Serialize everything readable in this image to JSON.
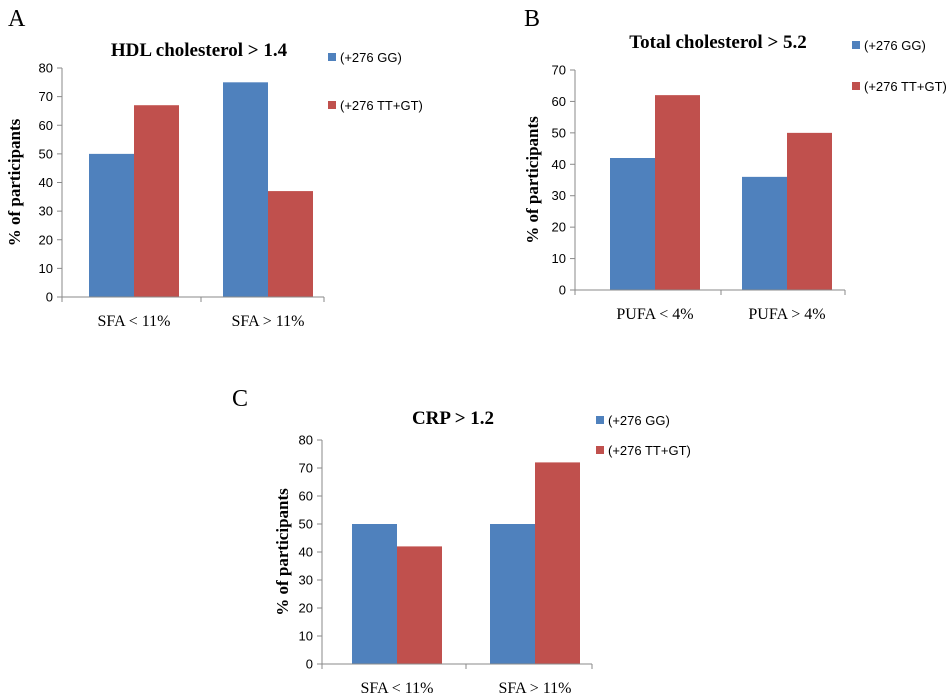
{
  "series_colors": [
    "#4f81bd",
    "#c0504d"
  ],
  "chart_data": [
    {
      "panel": "A",
      "type": "bar",
      "title": "HDL cholesterol > 1.4",
      "xlabel": "",
      "ylabel": "% of participants",
      "categories": [
        "SFA < 11%",
        "SFA > 11%"
      ],
      "series": [
        {
          "name": "(+276 GG)",
          "values": [
            50,
            75
          ]
        },
        {
          "name": "(+276 TT+GT)",
          "values": [
            67,
            37
          ]
        }
      ],
      "ylim": [
        0,
        80
      ],
      "yticks": [
        0,
        10,
        20,
        30,
        40,
        50,
        60,
        70,
        80
      ],
      "grid": false,
      "legend": "right"
    },
    {
      "panel": "B",
      "type": "bar",
      "title": "Total cholesterol > 5.2",
      "xlabel": "",
      "ylabel": "% of participants",
      "categories": [
        "PUFA < 4%",
        "PUFA > 4%"
      ],
      "series": [
        {
          "name": "(+276 GG)",
          "values": [
            42,
            36
          ]
        },
        {
          "name": "(+276 TT+GT)",
          "values": [
            62,
            50
          ]
        }
      ],
      "ylim": [
        0,
        70
      ],
      "yticks": [
        0,
        10,
        20,
        30,
        40,
        50,
        60,
        70
      ],
      "grid": false,
      "legend": "right"
    },
    {
      "panel": "C",
      "type": "bar",
      "title": "CRP > 1.2",
      "xlabel": "",
      "ylabel": "% of participants",
      "categories": [
        "SFA < 11%",
        "SFA > 11%"
      ],
      "series": [
        {
          "name": "(+276 GG)",
          "values": [
            50,
            50
          ]
        },
        {
          "name": "(+276 TT+GT)",
          "values": [
            42,
            72
          ]
        }
      ],
      "ylim": [
        0,
        80
      ],
      "yticks": [
        0,
        10,
        20,
        30,
        40,
        50,
        60,
        70,
        80
      ],
      "grid": false,
      "legend": "right"
    }
  ]
}
